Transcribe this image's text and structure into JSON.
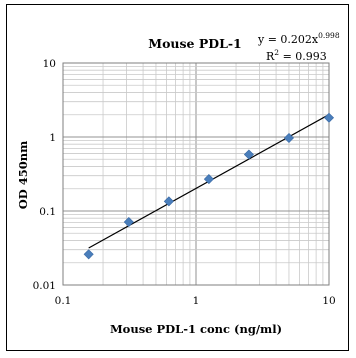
{
  "chart_data": {
    "type": "scatter",
    "title": "Mouse PDL-1",
    "xlabel": "Mouse PDL-1 conc (ng/ml)",
    "ylabel": "OD 450nm",
    "xscale": "log",
    "yscale": "log",
    "xlim": [
      0.1,
      10
    ],
    "ylim": [
      0.01,
      10
    ],
    "x_ticks": [
      "0.1",
      "1",
      "10"
    ],
    "y_ticks": [
      "0.01",
      "0.1",
      "1",
      "10"
    ],
    "grid": true,
    "marker": "diamond",
    "marker_color": "#4a7ebb",
    "series": [
      {
        "x": [
          0.156,
          0.3125,
          0.625,
          1.25,
          2.5,
          5,
          10
        ],
        "y": [
          0.026,
          0.071,
          0.135,
          0.27,
          0.58,
          0.97,
          1.82
        ]
      }
    ],
    "trendline": {
      "type": "power",
      "a": 0.202,
      "b": 0.998,
      "equation": "y = 0.202x",
      "exponent": "0.998",
      "r2_label": "R",
      "r2_sup": "2",
      "r2_value": " = 0.993"
    }
  }
}
